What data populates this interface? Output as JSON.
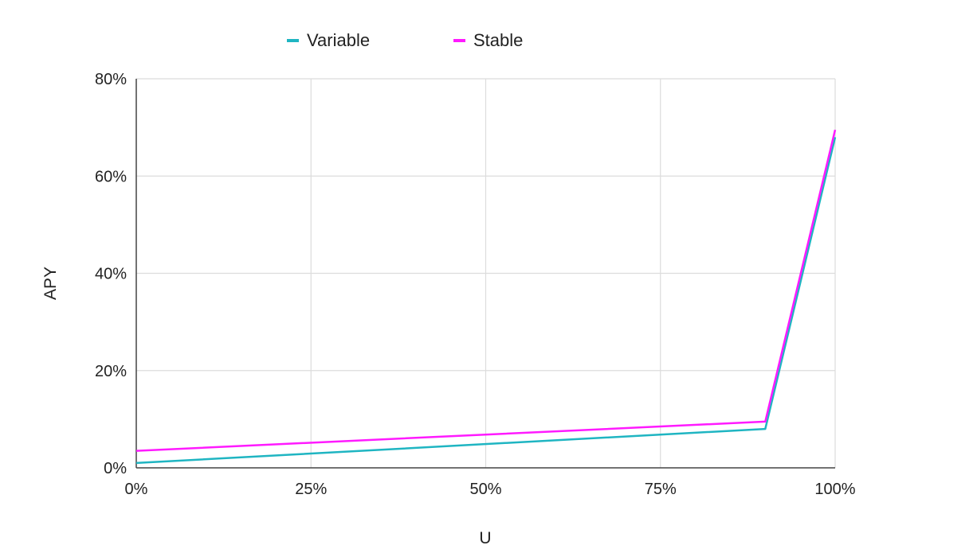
{
  "chart_data": {
    "type": "line",
    "xlabel": "U",
    "ylabel": "APY",
    "x_ticks": [
      "0%",
      "25%",
      "50%",
      "75%",
      "100%"
    ],
    "y_ticks": [
      "0%",
      "20%",
      "40%",
      "60%",
      "80%"
    ],
    "xlim": [
      0,
      100
    ],
    "ylim": [
      0,
      80
    ],
    "grid": true,
    "legend_position": "top",
    "series": [
      {
        "name": "Variable",
        "color": "#1fb5c2",
        "x": [
          0,
          90,
          100
        ],
        "y": [
          1,
          8,
          68
        ]
      },
      {
        "name": "Stable",
        "color": "#ff1aff",
        "x": [
          0,
          90,
          100
        ],
        "y": [
          3.5,
          9.5,
          69.5
        ]
      }
    ]
  }
}
